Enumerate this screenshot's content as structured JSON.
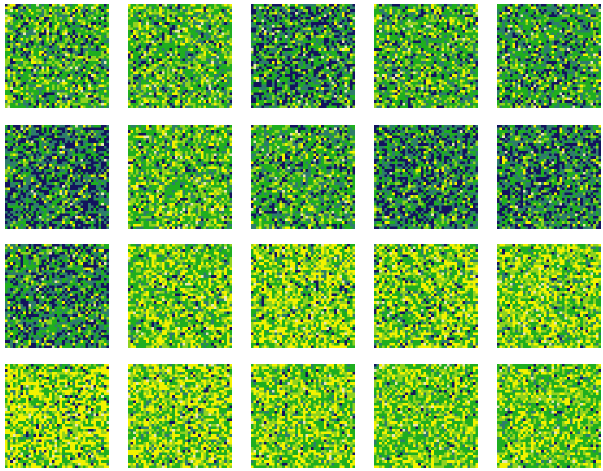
{
  "palette": {
    "navy": "#13135e",
    "teal": "#2e7d6b",
    "green": "#1fae1f",
    "lime": "#8fd21f",
    "yellow": "#f2f200",
    "light": "#e8e8b0"
  },
  "tiles": [
    {
      "weights": [
        0.12,
        0.18,
        0.38,
        0.2,
        0.1,
        0.02
      ]
    },
    {
      "weights": [
        0.1,
        0.16,
        0.38,
        0.22,
        0.12,
        0.02
      ]
    },
    {
      "weights": [
        0.3,
        0.26,
        0.28,
        0.1,
        0.04,
        0.02
      ]
    },
    {
      "weights": [
        0.14,
        0.18,
        0.38,
        0.18,
        0.1,
        0.02
      ]
    },
    {
      "weights": [
        0.18,
        0.24,
        0.36,
        0.14,
        0.06,
        0.02
      ]
    },
    {
      "weights": [
        0.34,
        0.3,
        0.24,
        0.08,
        0.03,
        0.01
      ]
    },
    {
      "weights": [
        0.08,
        0.14,
        0.4,
        0.22,
        0.14,
        0.02
      ]
    },
    {
      "weights": [
        0.14,
        0.22,
        0.4,
        0.16,
        0.06,
        0.02
      ]
    },
    {
      "weights": [
        0.32,
        0.28,
        0.26,
        0.09,
        0.04,
        0.01
      ]
    },
    {
      "weights": [
        0.3,
        0.28,
        0.28,
        0.09,
        0.04,
        0.01
      ]
    },
    {
      "weights": [
        0.28,
        0.26,
        0.3,
        0.1,
        0.05,
        0.01
      ]
    },
    {
      "weights": [
        0.04,
        0.08,
        0.36,
        0.24,
        0.26,
        0.02
      ]
    },
    {
      "weights": [
        0.06,
        0.06,
        0.3,
        0.2,
        0.36,
        0.02
      ]
    },
    {
      "weights": [
        0.07,
        0.08,
        0.34,
        0.22,
        0.27,
        0.02
      ]
    },
    {
      "weights": [
        0.04,
        0.07,
        0.34,
        0.25,
        0.28,
        0.02
      ]
    },
    {
      "weights": [
        0.05,
        0.06,
        0.28,
        0.2,
        0.39,
        0.02
      ]
    },
    {
      "weights": [
        0.04,
        0.07,
        0.32,
        0.24,
        0.31,
        0.02
      ]
    },
    {
      "weights": [
        0.04,
        0.08,
        0.36,
        0.24,
        0.26,
        0.02
      ]
    },
    {
      "weights": [
        0.03,
        0.07,
        0.4,
        0.26,
        0.22,
        0.02
      ]
    },
    {
      "weights": [
        0.03,
        0.07,
        0.4,
        0.26,
        0.22,
        0.02
      ]
    }
  ]
}
